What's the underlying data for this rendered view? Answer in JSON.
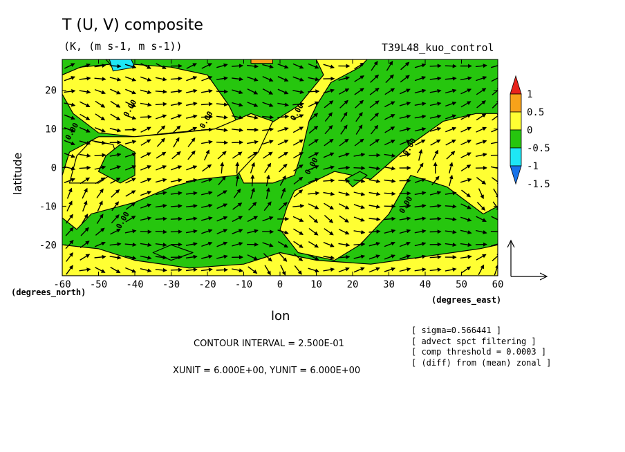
{
  "chart_data": {
    "type": "heatmap",
    "title": "T (U, V) composite",
    "subtitle": "(K, (m s-1, m s-1))",
    "run_label": "T39L48_kuo_control",
    "xlabel": "lon",
    "ylabel": "latitude",
    "x_units": "(degrees_east)",
    "y_units": "(degrees_north)",
    "xlim": [
      -60,
      60
    ],
    "ylim": [
      -28,
      28
    ],
    "x_ticks": [
      "-60",
      "-50",
      "-40",
      "-30",
      "-20",
      "-10",
      "0",
      "10",
      "20",
      "30",
      "40",
      "50",
      "60"
    ],
    "y_ticks": [
      "20",
      "10",
      "0",
      "-10",
      "-20"
    ],
    "grid": false,
    "legend": {
      "placement": "right",
      "labels": [
        "1",
        "0.5",
        "0",
        "-0.5",
        "-1",
        "-1.5"
      ],
      "bins": [
        {
          "from": 1.0,
          "to": 1.5,
          "color": "#e8231c"
        },
        {
          "from": 0.5,
          "to": 1.0,
          "color": "#f7a21a"
        },
        {
          "from": 0.0,
          "to": 0.5,
          "color": "#ffff33"
        },
        {
          "from": -0.5,
          "to": 0.0,
          "color": "#26c60e"
        },
        {
          "from": -1.0,
          "to": -0.5,
          "color": "#1ee7f5"
        },
        {
          "from": -1.5,
          "to": -1.0,
          "color": "#1873e9"
        }
      ]
    },
    "contour_label": "0.00",
    "positive_regions": [
      [
        [
          -60,
          24
        ],
        [
          -55,
          26
        ],
        [
          -44,
          27
        ],
        [
          -30,
          26
        ],
        [
          -20,
          24
        ],
        [
          -14,
          16
        ],
        [
          -12,
          12
        ],
        [
          -18,
          10
        ],
        [
          -30,
          9
        ],
        [
          -40,
          8
        ],
        [
          -50,
          9
        ],
        [
          -57,
          14
        ],
        [
          -60,
          19
        ]
      ],
      [
        [
          -5,
          28
        ],
        [
          10,
          28
        ],
        [
          12,
          24
        ],
        [
          5,
          16
        ],
        [
          -5,
          10
        ],
        [
          -10,
          6
        ],
        [
          -12,
          0
        ],
        [
          -10,
          -4
        ],
        [
          -2,
          -4
        ],
        [
          4,
          -2
        ],
        [
          6,
          4
        ],
        [
          8,
          12
        ],
        [
          10,
          16
        ],
        [
          14,
          22
        ],
        [
          22,
          26
        ],
        [
          24,
          28
        ]
      ],
      [
        [
          -18,
          10
        ],
        [
          -8,
          14
        ],
        [
          -2,
          12
        ],
        [
          -6,
          4
        ],
        [
          -12,
          -2
        ],
        [
          -22,
          -3
        ],
        [
          -30,
          -5
        ],
        [
          -40,
          -9
        ],
        [
          -52,
          -12
        ],
        [
          -56,
          -16
        ],
        [
          -60,
          -13
        ],
        [
          -60,
          -2
        ],
        [
          -58,
          4
        ],
        [
          -50,
          8
        ],
        [
          -40,
          8
        ],
        [
          -28,
          9
        ]
      ],
      [
        [
          -58,
          -4
        ],
        [
          -50,
          -4
        ],
        [
          -44,
          0
        ],
        [
          -46,
          6
        ],
        [
          -52,
          7
        ],
        [
          -56,
          3
        ]
      ],
      [
        [
          4,
          -6
        ],
        [
          15,
          -1
        ],
        [
          25,
          -3
        ],
        [
          36,
          6
        ],
        [
          45,
          12
        ],
        [
          54,
          14
        ],
        [
          60,
          14
        ],
        [
          60,
          -10
        ],
        [
          56,
          -12
        ],
        [
          46,
          -5
        ],
        [
          36,
          -2
        ],
        [
          30,
          -12
        ],
        [
          22,
          -20
        ],
        [
          15,
          -24
        ],
        [
          5,
          -22
        ],
        [
          0,
          -16
        ],
        [
          2,
          -10
        ]
      ],
      [
        [
          -60,
          -20
        ],
        [
          -50,
          -21
        ],
        [
          -40,
          -24
        ],
        [
          -25,
          -26
        ],
        [
          -10,
          -25
        ],
        [
          0,
          -22
        ],
        [
          10,
          -24
        ],
        [
          25,
          -25
        ],
        [
          40,
          -23
        ],
        [
          55,
          -21
        ],
        [
          60,
          -20
        ],
        [
          60,
          -28
        ],
        [
          -60,
          -28
        ]
      ]
    ],
    "negative_regions": [
      [
        [
          -48,
          3
        ],
        [
          -44,
          6
        ],
        [
          -40,
          4
        ],
        [
          -40,
          -2
        ],
        [
          -44,
          -4
        ],
        [
          -50,
          -1
        ]
      ],
      [
        [
          -24,
          -22
        ],
        [
          -30,
          -20
        ],
        [
          -35,
          -22
        ],
        [
          -30,
          -24
        ]
      ],
      [
        [
          18,
          -3
        ],
        [
          22,
          -1
        ],
        [
          24,
          -2
        ],
        [
          20,
          -5
        ]
      ],
      [
        [
          -46,
          26
        ],
        [
          -42,
          28
        ],
        [
          -48,
          28
        ]
      ]
    ],
    "cyan_regions": [
      [
        [
          -46,
          25
        ],
        [
          -40,
          26
        ],
        [
          -41,
          28
        ],
        [
          -47,
          28
        ]
      ]
    ],
    "orange_regions": [
      [
        [
          -8,
          27
        ],
        [
          -2,
          27
        ],
        [
          -2,
          28
        ],
        [
          -8,
          28
        ]
      ]
    ],
    "contour_labels": [
      {
        "x": -42,
        "y": 13
      },
      {
        "x": -58,
        "y": 7
      },
      {
        "x": -21,
        "y": 10
      },
      {
        "x": 4,
        "y": 12
      },
      {
        "x": 8,
        "y": -2
      },
      {
        "x": 35,
        "y": 3
      },
      {
        "x": 34,
        "y": -12
      },
      {
        "x": -44,
        "y": -16
      }
    ],
    "wind_field": {
      "u0": 1.0,
      "v0": 0.2,
      "amp_u": 1.0,
      "amp_v": 0.9
    },
    "reference_vector": {
      "x": 6.0,
      "y": 6.0
    }
  },
  "footer": {
    "contour_interval": "CONTOUR INTERVAL = 2.500E-01",
    "units": "XUNIT = 6.000E+00, YUNIT = 6.000E+00"
  },
  "notes": [
    "[ sigma=0.566441 ]",
    "[ advect spct filtering ]",
    "[ comp threshold = 0.0003 ]",
    "[ (diff) from (mean) zonal ]"
  ]
}
